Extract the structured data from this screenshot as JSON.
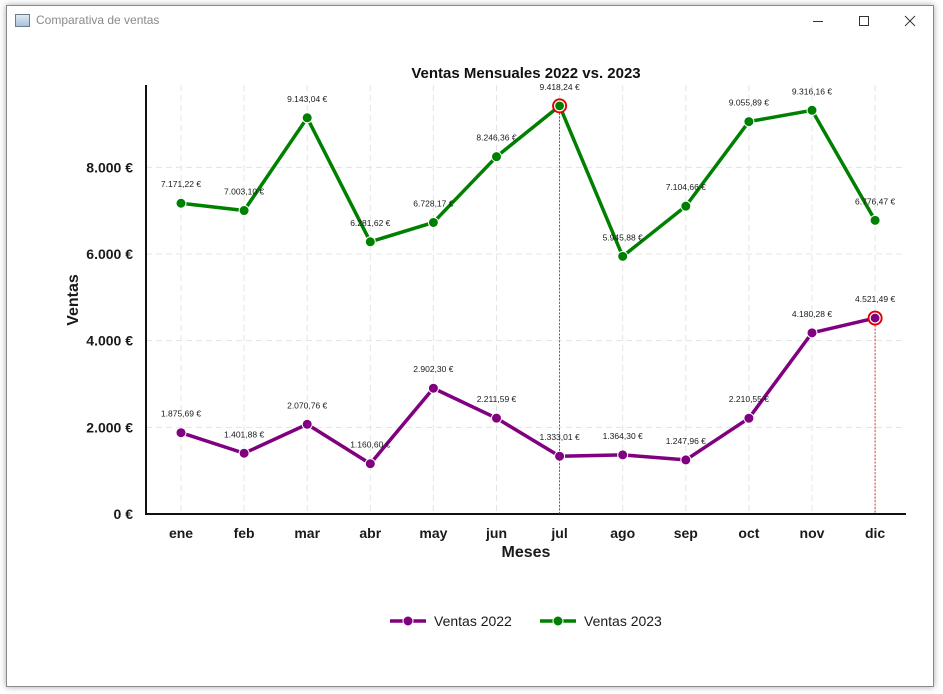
{
  "window": {
    "title": "Comparativa de ventas",
    "minimize_icon": "minimize-icon",
    "maximize_icon": "maximize-icon",
    "close_icon": "close-icon"
  },
  "chart_data": {
    "type": "line",
    "title": "Ventas Mensuales 2022 vs. 2023",
    "xlabel": "Meses",
    "ylabel": "Ventas",
    "categories": [
      "ene",
      "feb",
      "mar",
      "abr",
      "may",
      "jun",
      "jul",
      "ago",
      "sep",
      "oct",
      "nov",
      "dic"
    ],
    "ylim": [
      0,
      9900
    ],
    "yticks": [
      0,
      2000,
      4000,
      6000,
      8000
    ],
    "ytick_labels": [
      "0 €",
      "2.000 €",
      "4.000 €",
      "6.000 €",
      "8.000 €"
    ],
    "grid": true,
    "legend_position": "bottom-center",
    "series": [
      {
        "name": "Ventas 2022",
        "color": "#800080",
        "values": [
          1875.69,
          1401.88,
          2070.76,
          1160.6,
          2902.3,
          2211.59,
          1333.01,
          1364.3,
          1247.96,
          2210.55,
          4180.28,
          4521.49
        ],
        "labels": [
          "1.875,69 €",
          "1.401,88 €",
          "2.070,76 €",
          "1.160,60 €",
          "2.902,30 €",
          "2.211,59 €",
          "1.333,01 €",
          "1.364,30 €",
          "1.247,96 €",
          "2.210,55 €",
          "4.180,28 €",
          "4.521,49 €"
        ],
        "highlight_index": 11
      },
      {
        "name": "Ventas 2023",
        "color": "#008000",
        "values": [
          7171.22,
          7003.1,
          9143.04,
          6281.62,
          6728.17,
          8246.36,
          9418.24,
          5945.88,
          7104.66,
          9055.89,
          9316.16,
          6776.47
        ],
        "labels": [
          "7.171,22 €",
          "7.003,10 €",
          "9.143,04 €",
          "6.281,62 €",
          "6.728,17 €",
          "8.246,36 €",
          "9.418,24 €",
          "5.945,88 €",
          "7.104,66 €",
          "9.055,89 €",
          "9.316,16 €",
          "6.776,47 €"
        ],
        "highlight_index": 6
      }
    ],
    "highlight_color": "#dd0000"
  }
}
